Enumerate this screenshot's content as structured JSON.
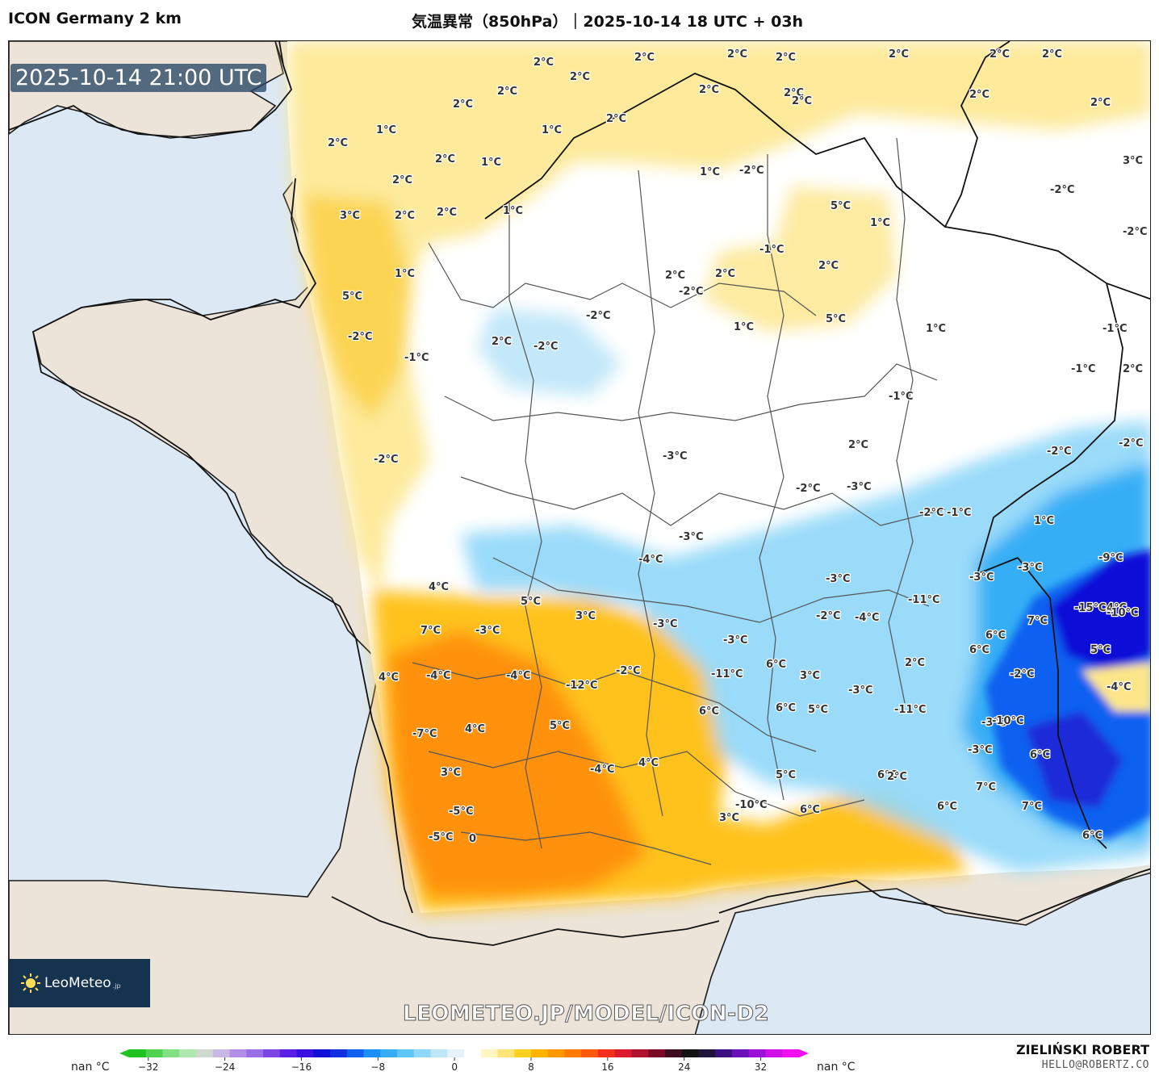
{
  "header": {
    "model_name": "ICON Germany 2 km",
    "title": "気温異常（850hPa）｜2025-10-14 18 UTC + 03h"
  },
  "map": {
    "valid_time": "2025-10-14 21:00 UTC",
    "watermark": "LEOMETEO.JP/MODEL/ICON-D2",
    "labels": [
      "2°C",
      "2°C",
      "2°C",
      "2°C",
      "2°C",
      "2°C",
      "2°C",
      "2°C",
      "2°C",
      "2°C",
      "2°C",
      "2°C",
      "2°C",
      "2°C",
      "2°C",
      "1°C",
      "1°C",
      "2°C",
      "2°C",
      "1°C",
      "1°C",
      "-2°C",
      "2°C",
      "3°C",
      "2°C",
      "3°C",
      "2°C",
      "2°C",
      "1°C",
      "-2°C",
      "-2°C",
      "1°C",
      "5°C",
      "2°C",
      "-1°C",
      "2°C",
      "2°C",
      "-2°C",
      "1°C",
      "1°C",
      "5°C",
      "5°C",
      "-2°C",
      "-1°C",
      "-2°C",
      "-1°C",
      "2°C",
      "-2°C",
      "1°C",
      "2°C",
      "-1°C",
      "-1°C",
      "-2°C",
      "-2°C",
      "-3°C",
      "2°C",
      "-2°C",
      "-3°C",
      "-2°C",
      "-1°C",
      "1°C",
      "-2°C",
      "-3°C",
      "-3°C",
      "-4°C",
      "-3°C",
      "-3°C",
      "-9°C",
      "4°C",
      "4°C",
      "5°C",
      "3°C",
      "-3°C",
      "-4°C",
      "-11°C",
      "-15°C",
      "-10°C",
      "7°C",
      "7°C",
      "-3°C",
      "-3°C",
      "-2°C",
      "6°C",
      "6°C",
      "6°C",
      "5°C",
      "4°C",
      "-4°C",
      "-4°C",
      "-12°C",
      "-2°C",
      "-11°C",
      "3°C",
      "-2°C",
      "2°C",
      "-3°C",
      "-4°C",
      "-3°C",
      "6°C",
      "6°C",
      "5°C",
      "-11°C",
      "-7°C",
      "4°C",
      "5°C",
      "-10°C",
      "-3°C",
      "4°C",
      "6°C",
      "6°C",
      "5°C",
      "2°C",
      "3°C",
      "-5°C",
      "-4°C",
      "-10°C",
      "6°C",
      "7°C",
      "6°C",
      "7°C",
      "6°C",
      "3°C",
      "-5°C",
      "0"
    ],
    "land_color": "#ece4d8",
    "sea_color": "#dce9f5"
  },
  "logo": {
    "text": "LeoMeteo",
    "suffix": ".jp"
  },
  "colorbar": {
    "ticks": [
      "−32",
      "−24",
      "−16",
      "−8",
      "0",
      "8",
      "16",
      "24",
      "32"
    ],
    "tick_values": [
      -32,
      -24,
      -16,
      -8,
      0,
      8,
      16,
      24,
      32
    ],
    "range": [
      -34,
      36
    ],
    "colors": [
      "#1fc21f",
      "#4fd24f",
      "#84e084",
      "#aee8ae",
      "#cfd9cf",
      "#c7b8e6",
      "#b38ee8",
      "#9a6ee8",
      "#7c45e6",
      "#5a1ee6",
      "#3a10e0",
      "#1010d8",
      "#1030e0",
      "#1060f0",
      "#1a8ff5",
      "#35aef6",
      "#5fc5f7",
      "#8fd7f8",
      "#bde6f8",
      "#e6f2fa",
      "#ffffff",
      "#fff6c2",
      "#ffe477",
      "#ffd020",
      "#ffb400",
      "#ff9800",
      "#ff7a00",
      "#ff5a10",
      "#f3301e",
      "#dc1a2e",
      "#b0132f",
      "#7a0a25",
      "#3d0c1e",
      "#131313",
      "#20143a",
      "#3b1080",
      "#6a10b8",
      "#9c10d8",
      "#cf10e8",
      "#f010f0"
    ],
    "nan_left": "nan °C",
    "nan_right": "nan °C"
  },
  "author": {
    "name": "ZIELIŃSKI ROBERT",
    "email": "HELLO@ROBERTZ.CO"
  }
}
